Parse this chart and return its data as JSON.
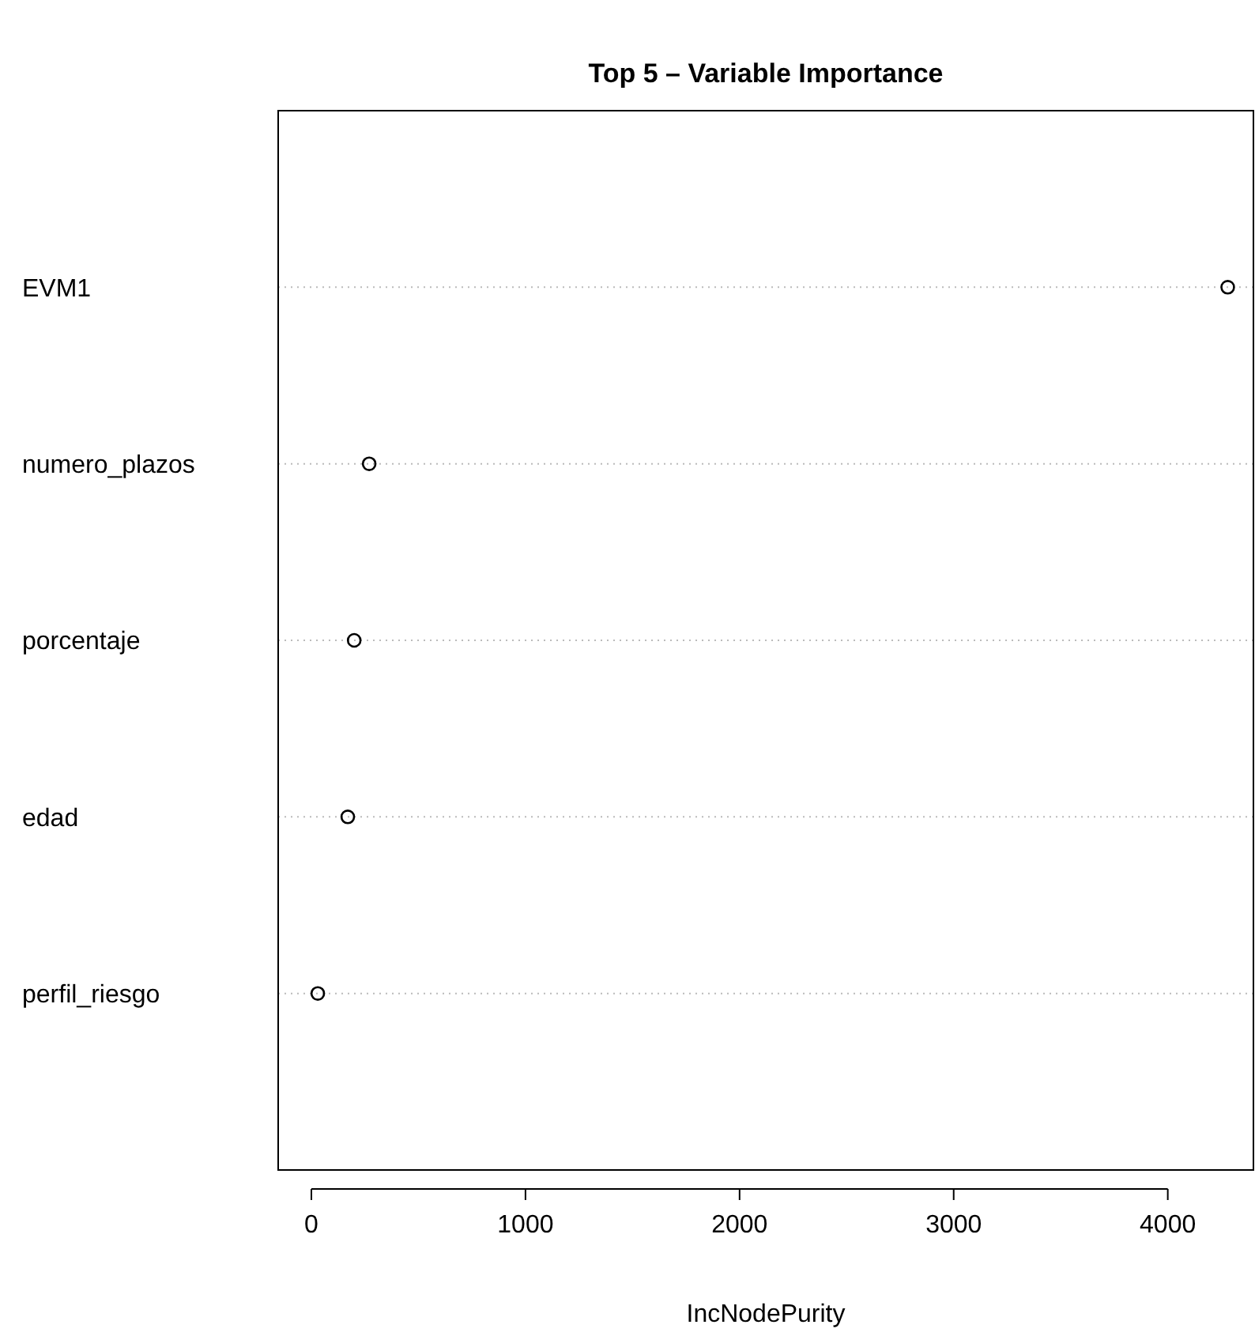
{
  "chart_data": {
    "type": "scatter",
    "orientation": "horizontal",
    "title": "Top 5 – Variable Importance",
    "xlabel": "IncNodePurity",
    "categories": [
      "EVM1",
      "numero_plazos",
      "porcentaje",
      "edad",
      "perfil_riesgo"
    ],
    "series": [
      {
        "color": "#000000",
        "values": [
          4280,
          270,
          200,
          170,
          30
        ]
      }
    ],
    "xlim": [
      -155,
      4400
    ],
    "xticks": [
      0,
      1000,
      2000,
      3000,
      4000
    ],
    "grid": "y",
    "marker": "circle"
  }
}
